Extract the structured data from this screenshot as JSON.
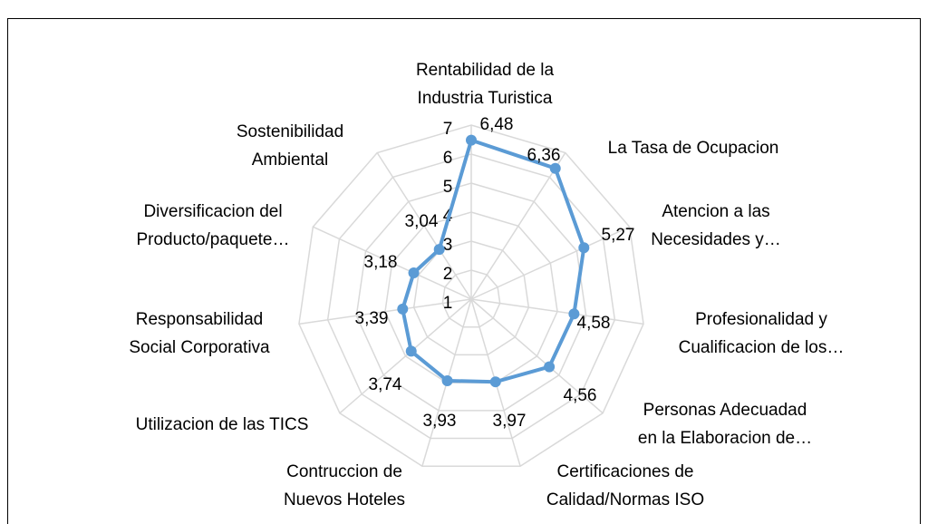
{
  "chart_data": {
    "type": "radar",
    "categories": [
      "Rentabilidad de la Industria Turistica",
      "La Tasa de Ocupacion",
      "Atencion a las Necesidades y…",
      "Profesionalidad y Cualificacion de los…",
      "Personas Adecuadad en la Elaboracion de…",
      "Certificaciones de Calidad/Normas ISO",
      "Contruccion de Nuevos Hoteles",
      "Utilizacion de las TICS",
      "Responsabilidad Social Corporativa",
      "Diversificacion del Producto/paquete…",
      "Sostenibilidad Ambiental"
    ],
    "values": [
      6.48,
      6.36,
      5.27,
      4.58,
      4.56,
      3.97,
      3.93,
      3.74,
      3.39,
      3.18,
      3.04
    ],
    "value_labels": [
      "6,48",
      "6,36",
      "5,27",
      "4,58",
      "4,56",
      "3,97",
      "3,93",
      "3,74",
      "3,39",
      "3,18",
      "3,04"
    ],
    "color": "#5b9bd5",
    "rlim": [
      1,
      7
    ],
    "rticks": [
      1,
      2,
      3,
      4,
      5,
      6,
      7
    ],
    "grid": true
  }
}
